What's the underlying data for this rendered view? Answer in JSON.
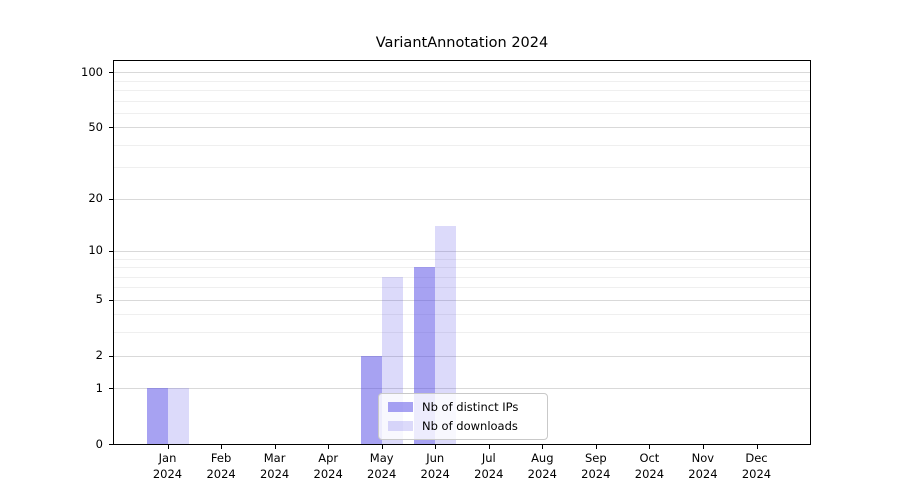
{
  "chart_data": {
    "type": "bar",
    "title": "VariantAnnotation 2024",
    "categories": [
      "Jan",
      "Feb",
      "Mar",
      "Apr",
      "May",
      "Jun",
      "Jul",
      "Aug",
      "Sep",
      "Oct",
      "Nov",
      "Dec"
    ],
    "x_year": "2024",
    "series": [
      {
        "name": "Nb of distinct IPs",
        "color": "rgba(80,70,230,0.5)",
        "values": [
          1,
          0,
          0,
          0,
          2,
          8,
          0,
          0,
          0,
          0,
          0,
          0
        ]
      },
      {
        "name": "Nb of downloads",
        "color": "rgba(80,70,230,0.2)",
        "values": [
          1,
          0,
          0,
          0,
          7,
          14,
          0,
          0,
          0,
          0,
          0,
          0
        ]
      }
    ],
    "scale": "log1p",
    "ylim": [
      0,
      115
    ],
    "yticks": [
      0,
      1,
      2,
      5,
      10,
      20,
      50,
      100
    ],
    "minor_gridlines": [
      3,
      4,
      6,
      7,
      8,
      9,
      30,
      40,
      60,
      70,
      80,
      90
    ],
    "major_gridlines": [
      1,
      2,
      5,
      10,
      20,
      50,
      100
    ],
    "legend_position": "lower center, inside plot",
    "colors": {
      "major_grid": "#d9d9d9",
      "minor_grid": "#efefef",
      "axis": "#000000",
      "text": "#000000",
      "background": "#ffffff"
    }
  }
}
